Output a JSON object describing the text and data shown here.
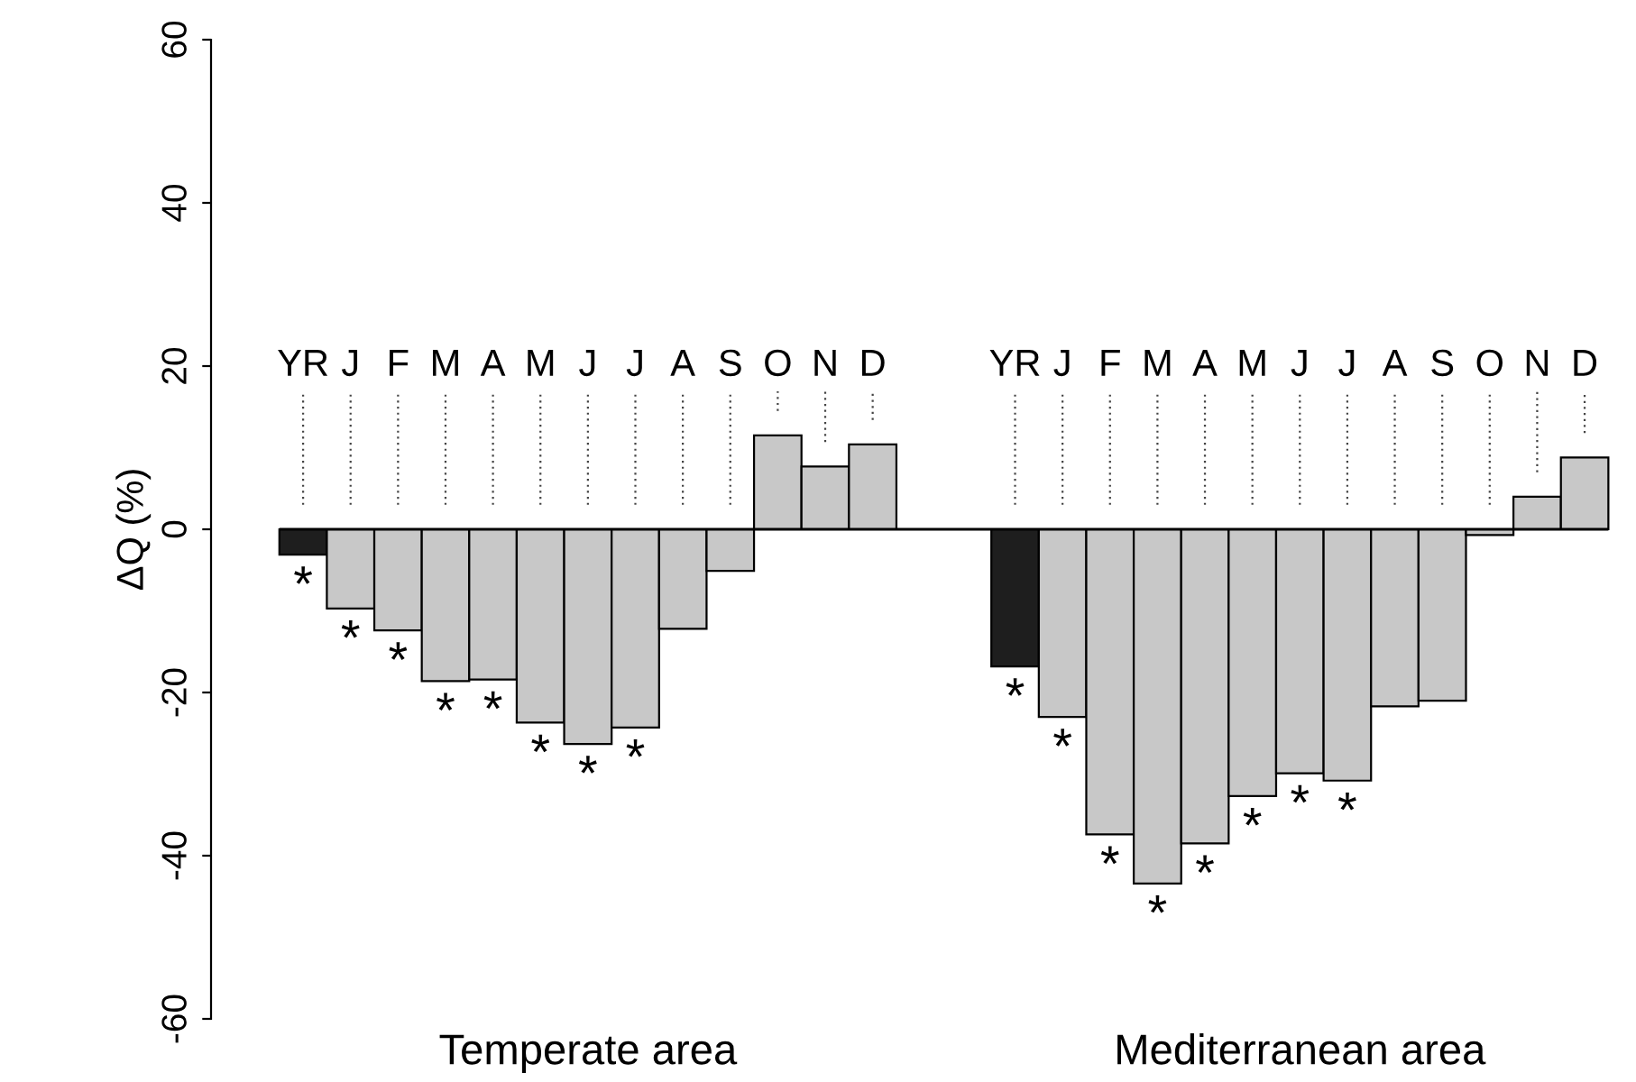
{
  "chart_data": {
    "type": "bar",
    "ylabel": "ΔQ (%)",
    "categories": [
      "YR",
      "J",
      "F",
      "M",
      "A",
      "M",
      "J",
      "J",
      "A",
      "S",
      "O",
      "N",
      "D",
      null,
      null,
      "YR",
      "J",
      "F",
      "M",
      "A",
      "M",
      "J",
      "J",
      "A",
      "S",
      "O",
      "N",
      "D"
    ],
    "values": [
      -3.1,
      -9.7,
      -12.4,
      -18.6,
      -18.4,
      -23.7,
      -26.3,
      -24.3,
      -12.2,
      -5.1,
      11.5,
      7.7,
      10.4,
      null,
      null,
      -16.8,
      -23.0,
      -37.4,
      -43.4,
      -38.5,
      -32.7,
      -29.9,
      -30.8,
      -21.7,
      -21.0,
      -0.7,
      4.0,
      8.8
    ],
    "colors": [
      "#1e1e1e",
      "#c8c8c8",
      "#c8c8c8",
      "#c8c8c8",
      "#c8c8c8",
      "#c8c8c8",
      "#c8c8c8",
      "#c8c8c8",
      "#c8c8c8",
      "#c8c8c8",
      "#c8c8c8",
      "#c8c8c8",
      "#c8c8c8",
      null,
      null,
      "#1e1e1e",
      "#c8c8c8",
      "#c8c8c8",
      "#c8c8c8",
      "#c8c8c8",
      "#c8c8c8",
      "#c8c8c8",
      "#c8c8c8",
      "#c8c8c8",
      "#c8c8c8",
      "#c8c8c8",
      "#c8c8c8",
      "#c8c8c8"
    ],
    "value_labels": [
      "*",
      "*",
      "*",
      "*",
      "*",
      "*",
      "*",
      "*",
      null,
      null,
      null,
      null,
      null,
      null,
      null,
      "*",
      "*",
      "*",
      "*",
      "*",
      "*",
      "*",
      "*",
      null,
      null,
      null,
      null,
      null
    ],
    "ylim": [
      -60,
      60
    ],
    "yticks": [
      -60,
      -40,
      -20,
      0,
      20,
      40,
      60
    ],
    "ref_lines": [
      {
        "axis": "y",
        "value": 0,
        "color": "#000000"
      }
    ],
    "annotations": [
      "Temperate area",
      "Mediterranean area"
    ],
    "grid": false,
    "legend": false
  }
}
